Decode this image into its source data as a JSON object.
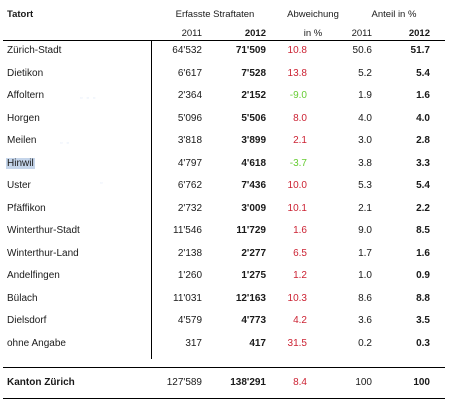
{
  "header": {
    "tatort": "Tatort",
    "erfasste": "Erfasste Straftaten",
    "abweichung": "Abweichung",
    "in_percent": "in %",
    "anteil": "Anteil in %",
    "year_2011_a": "2011",
    "year_2012_a": "2012",
    "year_2011_b": "2011",
    "year_2012_b": "2012"
  },
  "colors": {
    "positive": "#cc2233",
    "negative": "#66cc33",
    "highlight": "#c5d5ea"
  },
  "rows": [
    {
      "name": "Zürich-Stadt",
      "v2011": "64'532",
      "v2012": "71'509",
      "abw": "10.8",
      "sign": "pos",
      "a2011": "50.6",
      "a2012": "51.7"
    },
    {
      "name": "Dietikon",
      "v2011": "6'617",
      "v2012": "7'528",
      "abw": "13.8",
      "sign": "pos",
      "a2011": "5.2",
      "a2012": "5.4"
    },
    {
      "name": "Affoltern",
      "v2011": "2'364",
      "v2012": "2'152",
      "abw": "-9.0",
      "sign": "neg",
      "a2011": "1.9",
      "a2012": "1.6"
    },
    {
      "name": "Horgen",
      "v2011": "5'096",
      "v2012": "5'506",
      "abw": "8.0",
      "sign": "pos",
      "a2011": "4.0",
      "a2012": "4.0"
    },
    {
      "name": "Meilen",
      "v2011": "3'818",
      "v2012": "3'899",
      "abw": "2.1",
      "sign": "pos",
      "a2011": "3.0",
      "a2012": "2.8"
    },
    {
      "name": "Hinwil",
      "v2011": "4'797",
      "v2012": "4'618",
      "abw": "-3.7",
      "sign": "neg",
      "a2011": "3.8",
      "a2012": "3.3",
      "selected": true
    },
    {
      "name": "Uster",
      "v2011": "6'762",
      "v2012": "7'436",
      "abw": "10.0",
      "sign": "pos",
      "a2011": "5.3",
      "a2012": "5.4"
    },
    {
      "name": "Pfäffikon",
      "v2011": "2'732",
      "v2012": "3'009",
      "abw": "10.1",
      "sign": "pos",
      "a2011": "2.1",
      "a2012": "2.2"
    },
    {
      "name": "Winterthur-Stadt",
      "v2011": "11'546",
      "v2012": "11'729",
      "abw": "1.6",
      "sign": "pos",
      "a2011": "9.0",
      "a2012": "8.5"
    },
    {
      "name": "Winterthur-Land",
      "v2011": "2'138",
      "v2012": "2'277",
      "abw": "6.5",
      "sign": "pos",
      "a2011": "1.7",
      "a2012": "1.6"
    },
    {
      "name": "Andelfingen",
      "v2011": "1'260",
      "v2012": "1'275",
      "abw": "1.2",
      "sign": "pos",
      "a2011": "1.0",
      "a2012": "0.9"
    },
    {
      "name": "Bülach",
      "v2011": "11'031",
      "v2012": "12'163",
      "abw": "10.3",
      "sign": "pos",
      "a2011": "8.6",
      "a2012": "8.8"
    },
    {
      "name": "Dielsdorf",
      "v2011": "4'579",
      "v2012": "4'773",
      "abw": "4.2",
      "sign": "pos",
      "a2011": "3.6",
      "a2012": "3.5"
    },
    {
      "name": "ohne Angabe",
      "v2011": "317",
      "v2012": "417",
      "abw": "31.5",
      "sign": "pos",
      "a2011": "0.2",
      "a2012": "0.3"
    }
  ],
  "total": {
    "name": "Kanton Zürich",
    "v2011": "127'589",
    "v2012": "138'291",
    "abw": "8.4",
    "sign": "pos",
    "a2011": "100",
    "a2012": "100"
  }
}
